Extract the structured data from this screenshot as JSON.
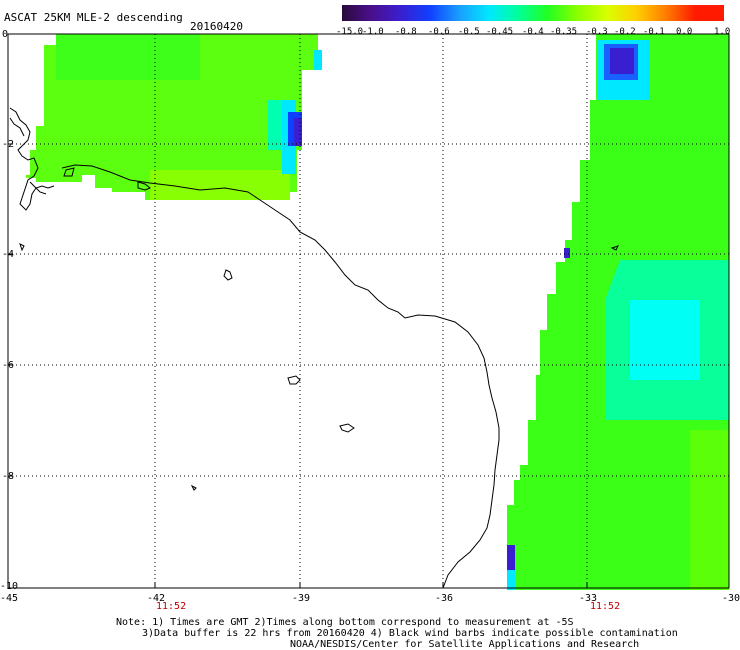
{
  "header": {
    "title": "ASCAT 25KM MLE-2 descending",
    "date": "20160420"
  },
  "colorbar": {
    "labels": [
      "-15.0",
      "-1.0",
      "-0.8",
      "-0.6",
      "-0.5",
      "-0.45",
      "-0.4",
      "-0.35",
      "-0.3",
      "-0.2",
      "-0.1",
      "0.0",
      "1.0"
    ],
    "colors": [
      "#2a0a3a",
      "#4b0f8c",
      "#3a1fd0",
      "#1040ff",
      "#1aa0ff",
      "#00e8ff",
      "#00ff9a",
      "#22ff22",
      "#8aff00",
      "#d8ff00",
      "#ffd000",
      "#ff8000",
      "#ff1a00"
    ]
  },
  "axes": {
    "y_ticks": [
      "0",
      "-2",
      "-4",
      "-6",
      "-8",
      "-10"
    ],
    "x_ticks": [
      "-45",
      "-42",
      "-39",
      "-36",
      "-33",
      "-30"
    ],
    "times": [
      "11:52",
      "11:52"
    ]
  },
  "notes": {
    "line1": "Note: 1) Times are GMT 2)Times along bottom correspond to measurement at -5S",
    "line2": "3)Data buffer is 22 hrs from 20160420 4) Black wind barbs indicate possible contamination",
    "line3": "NOAA/NESDIS/Center for Satellite Applications and Research"
  },
  "palette": {
    "green": "#22ff22",
    "lime": "#8aff00",
    "cyan": "#00ffff",
    "aqua": "#00ff9a",
    "blue": "#1040ff",
    "navy": "#3a1fd0",
    "gridline": "#000000"
  }
}
